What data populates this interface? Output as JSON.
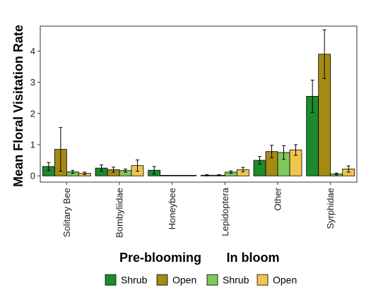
{
  "chart_data": {
    "type": "bar",
    "ylabel": "Mean Floral Visitation Rate",
    "xlabel_parts": [
      "Pre-blooming",
      "In bloom"
    ],
    "ylim": [
      -0.2,
      4.8
    ],
    "yticks": [
      0,
      1,
      2,
      3,
      4
    ],
    "grid": false,
    "legend_position": "bottom",
    "categories": [
      "Solitary Bee",
      "Bombyliidae",
      "Honeybee",
      "Lepidoptera",
      "Other",
      "Syrphidae"
    ],
    "series": [
      {
        "name": "Shrub",
        "color": "#1e8a2e",
        "values": [
          0.3,
          0.25,
          0.18,
          0.02,
          0.5,
          2.55
        ],
        "errors": [
          0.13,
          0.1,
          0.12,
          0.02,
          0.12,
          0.52
        ]
      },
      {
        "name": "Open",
        "color": "#a58a14",
        "values": [
          0.85,
          0.2,
          0.0,
          0.02,
          0.78,
          3.9
        ],
        "errors": [
          0.7,
          0.08,
          0.0,
          0.02,
          0.2,
          0.78
        ]
      },
      {
        "name": "Shrub",
        "color": "#7ec95a",
        "values": [
          0.13,
          0.17,
          0.0,
          0.12,
          0.75,
          0.06
        ],
        "errors": [
          0.05,
          0.05,
          0.0,
          0.04,
          0.22,
          0.03
        ]
      },
      {
        "name": "Open",
        "color": "#f0c450",
        "values": [
          0.08,
          0.33,
          0.0,
          0.2,
          0.83,
          0.22
        ],
        "errors": [
          0.04,
          0.18,
          0.0,
          0.07,
          0.17,
          0.1
        ]
      }
    ]
  }
}
